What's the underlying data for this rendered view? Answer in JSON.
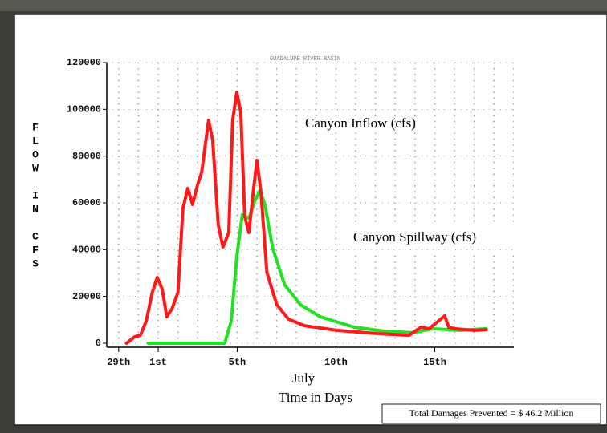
{
  "chart_data": {
    "type": "line",
    "title": "GUADALUPE RIVER BASIN",
    "y_label": "FLOW IN CFS",
    "x_label": "July",
    "x_sublabel": "Time in Days",
    "annotations": [
      "Canyon Inflow (cfs)",
      "Canyon Spillway (cfs)"
    ],
    "footer": "Total Damages Prevented = $ 46.2 Million",
    "xlim": [
      -0.6,
      20
    ],
    "xticks": [
      {
        "value": 0,
        "label": "29th"
      },
      {
        "value": 2,
        "label": "1st"
      },
      {
        "value": 6,
        "label": "5th"
      },
      {
        "value": 11,
        "label": "10th"
      },
      {
        "value": 16,
        "label": "15th"
      }
    ],
    "ylim": [
      0,
      120000
    ],
    "yticks": [
      0,
      20000,
      40000,
      60000,
      80000,
      100000,
      120000
    ],
    "grid": true,
    "series": [
      {
        "name": "Canyon Inflow (cfs)",
        "color": "#ff1a1a",
        "x": [
          0.4,
          0.8,
          1.1,
          1.4,
          1.7,
          1.95,
          2.2,
          2.44,
          2.7,
          3.0,
          3.25,
          3.5,
          3.74,
          4.0,
          4.2,
          4.55,
          4.76,
          5.04,
          5.28,
          5.57,
          5.77,
          5.98,
          6.18,
          6.38,
          6.59,
          6.83,
          7.0,
          7.2,
          7.5,
          8.0,
          8.6,
          9.4,
          11.06,
          13.1,
          14.7,
          15.3,
          15.7,
          16.1,
          16.5,
          16.7,
          17.0,
          18.0,
          18.6
        ],
        "values": [
          0,
          2700,
          3400,
          9600,
          21600,
          28100,
          23300,
          11300,
          14700,
          21600,
          57600,
          66200,
          59300,
          67900,
          73000,
          95300,
          86800,
          50700,
          41100,
          47300,
          95300,
          107300,
          98700,
          54200,
          47300,
          66200,
          78200,
          64500,
          30200,
          16500,
          10300,
          7500,
          5500,
          4100,
          3400,
          6900,
          6200,
          8900,
          11700,
          6900,
          6200,
          5500,
          5800
        ]
      },
      {
        "name": "Canyon Spillway (cfs)",
        "color": "#22e022",
        "x": [
          1.5,
          5.37,
          5.7,
          5.98,
          6.26,
          6.59,
          6.9,
          7.15,
          7.4,
          7.8,
          8.4,
          9.2,
          10.2,
          11.9,
          13.5,
          14.9,
          15.9,
          17.2,
          18.6
        ],
        "values": [
          0,
          0,
          9600,
          37000,
          54900,
          53500,
          61000,
          65200,
          59300,
          40500,
          25000,
          16500,
          11300,
          6900,
          5100,
          4500,
          6200,
          5500,
          6200
        ]
      }
    ]
  }
}
